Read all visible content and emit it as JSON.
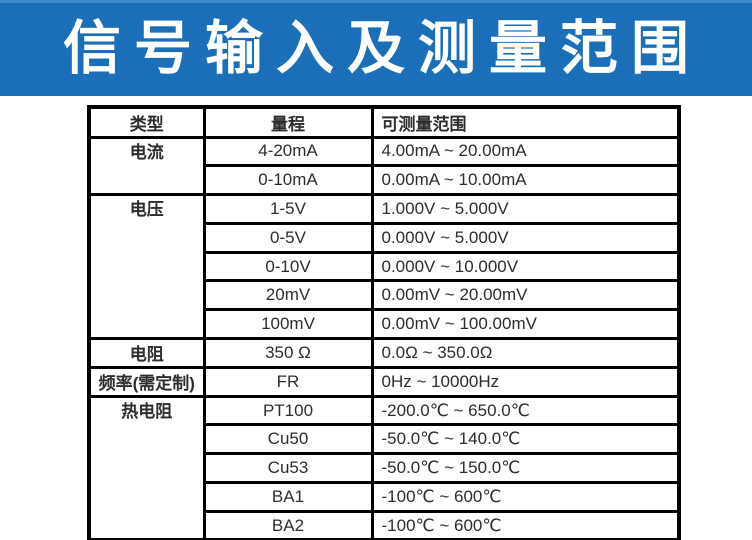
{
  "banner": {
    "title": "信号输入及测量范围",
    "bg_color": "#1b6fb8",
    "text_color": "#ffffff"
  },
  "table": {
    "border_color": "#000000",
    "headers": [
      "类型",
      "量程",
      "可测量范围"
    ],
    "groups": [
      {
        "label": "电流",
        "rows": [
          {
            "range": "4-20mA",
            "measurable": "4.00mA  ~  20.00mA"
          },
          {
            "range": "0-10mA",
            "measurable": "0.00mA  ~  10.00mA"
          }
        ]
      },
      {
        "label": "电压",
        "rows": [
          {
            "range": "1-5V",
            "measurable": "1.000V  ~  5.000V"
          },
          {
            "range": "0-5V",
            "measurable": "0.000V  ~  5.000V"
          },
          {
            "range": "0-10V",
            "measurable": "0.000V  ~  10.000V"
          },
          {
            "range": "20mV",
            "measurable": "0.00mV  ~  20.00mV"
          },
          {
            "range": "100mV",
            "measurable": "0.00mV  ~  100.00mV"
          }
        ]
      },
      {
        "label": "电阻",
        "rows": [
          {
            "range": "350 Ω",
            "measurable": "0.0Ω  ~  350.0Ω"
          }
        ]
      },
      {
        "label": "频率(需定制)",
        "rows": [
          {
            "range": "FR",
            "measurable": "0Hz  ~  10000Hz"
          }
        ]
      },
      {
        "label": "热电阻",
        "rows": [
          {
            "range": "PT100",
            "measurable": "-200.0℃  ~  650.0℃"
          },
          {
            "range": "Cu50",
            "measurable": "-50.0℃  ~  140.0℃"
          },
          {
            "range": "Cu53",
            "measurable": "-50.0℃  ~  150.0℃"
          },
          {
            "range": "BA1",
            "measurable": "-100℃  ~  600℃"
          },
          {
            "range": "BA2",
            "measurable": "-100℃  ~  600℃"
          }
        ]
      }
    ]
  }
}
